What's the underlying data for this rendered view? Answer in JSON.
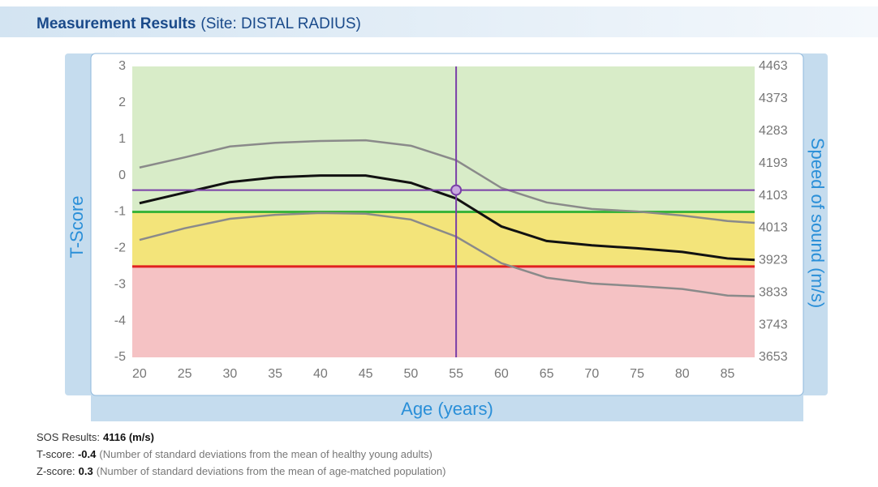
{
  "header": {
    "title": "Measurement Results",
    "site": "(Site: DISTAL RADIUS)"
  },
  "chart_data": {
    "type": "line",
    "x_label": "Age (years)",
    "y_label": "T-Score",
    "y2_label": "Speed of sound (m/s)",
    "x": [
      20,
      25,
      30,
      35,
      40,
      45,
      50,
      55,
      60,
      65,
      70,
      75,
      80,
      85,
      88
    ],
    "series": [
      {
        "color": "#8a8a8a",
        "values": [
          0.22,
          0.5,
          0.8,
          0.9,
          0.95,
          0.97,
          0.82,
          0.42,
          -0.34,
          -0.74,
          -0.92,
          -0.99,
          -1.1,
          -1.25,
          -1.3
        ]
      },
      {
        "color": "#111111",
        "values": [
          -0.76,
          -0.47,
          -0.18,
          -0.05,
          0,
          0,
          -0.2,
          -0.63,
          -1.4,
          -1.8,
          -1.92,
          -2.0,
          -2.1,
          -2.28,
          -2.32
        ]
      },
      {
        "color": "#8a8a8a",
        "values": [
          -1.77,
          -1.45,
          -1.19,
          -1.08,
          -1.03,
          -1.05,
          -1.21,
          -1.68,
          -2.41,
          -2.81,
          -2.97,
          -3.04,
          -3.12,
          -3.3,
          -3.32
        ]
      }
    ],
    "bands": [
      {
        "from": -1,
        "to": 3,
        "color": "#d8ecc8"
      },
      {
        "from": -2.5,
        "to": -1,
        "color": "#f3e47a"
      },
      {
        "from": -5,
        "to": -2.5,
        "color": "#f5c2c4"
      }
    ],
    "thresholds": [
      {
        "value": -1,
        "color": "#3bb43b"
      },
      {
        "value": -2.5,
        "color": "#e02020"
      }
    ],
    "marker": {
      "x": 55,
      "y": -0.4,
      "color": "#7a3fa8",
      "fill": "#c8a8e0"
    },
    "xlim": [
      19.2,
      88
    ],
    "xticks": [
      20,
      25,
      30,
      35,
      40,
      45,
      50,
      55,
      60,
      65,
      70,
      75,
      80,
      85
    ],
    "ylim": [
      -5,
      3
    ],
    "yticks": [
      -5,
      -4,
      -3,
      -2,
      -1,
      0,
      1,
      2,
      3
    ],
    "y2lim": [
      3653,
      4463
    ],
    "y2ticks": [
      3653,
      3743,
      3833,
      3923,
      4013,
      4103,
      4193,
      4283,
      4373,
      4463
    ]
  },
  "results": [
    {
      "label": "SOS Results:",
      "value": "4116 (m/s)",
      "note": ""
    },
    {
      "label": "T-score:",
      "value": "-0.4",
      "note": "(Number of standard deviations from the mean of healthy young adults)"
    },
    {
      "label": "Z-score:",
      "value": "0.3",
      "note": "(Number of standard deviations from the mean of age-matched population)"
    }
  ]
}
